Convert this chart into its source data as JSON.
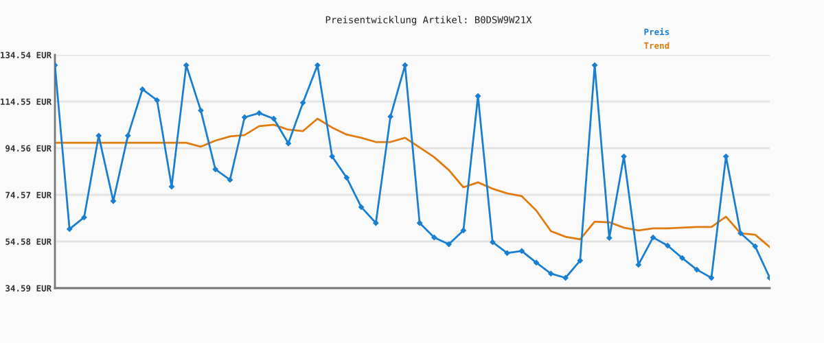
{
  "chart_data": {
    "type": "line",
    "title": "Preisentwicklung Artikel: B0DSW9W21X",
    "categories": [
      null,
      null,
      null,
      null,
      null,
      null,
      null,
      null,
      null,
      null,
      null,
      null,
      null,
      null,
      null,
      null,
      null,
      null,
      null,
      null,
      null,
      null,
      null,
      null,
      null,
      null,
      null,
      null,
      null,
      null,
      null,
      null,
      null,
      null,
      null,
      null,
      null,
      null,
      null,
      null,
      null,
      null,
      null,
      null,
      null,
      null,
      null,
      null,
      null,
      null
    ],
    "series": [
      {
        "name": "Preis",
        "color": "#1a7fd0",
        "marker": "diamond",
        "values": [
          130.1,
          59.9,
          64.9,
          99.9,
          71.9,
          99.9,
          119.8,
          115.1,
          78.1,
          130.1,
          110.7,
          85.5,
          81.0,
          107.8,
          109.6,
          107.2,
          96.6,
          114.0,
          130.1,
          91.0,
          81.9,
          69.3,
          62.5,
          108.1,
          130.1,
          62.5,
          56.3,
          53.4,
          59.3,
          116.9,
          54.3,
          49.6,
          50.5,
          45.5,
          40.8,
          39.0,
          46.4,
          130.1,
          56.1,
          91.0,
          44.6,
          56.3,
          52.8,
          47.5,
          42.5,
          39.0,
          91.0,
          58.1,
          52.5,
          39.0
        ]
      },
      {
        "name": "Trend",
        "color": "#e07b10",
        "marker": "none",
        "values": [
          96.9,
          96.9,
          96.9,
          96.9,
          96.9,
          96.9,
          96.9,
          96.9,
          96.9,
          96.9,
          95.2,
          97.8,
          99.6,
          100.2,
          104.0,
          104.6,
          102.5,
          101.9,
          107.2,
          103.4,
          100.4,
          99.0,
          97.2,
          97.2,
          99.0,
          94.9,
          90.7,
          85.2,
          77.8,
          79.9,
          77.2,
          75.2,
          74.0,
          67.8,
          59.0,
          56.6,
          55.5,
          63.1,
          62.8,
          60.5,
          59.3,
          60.2,
          60.2,
          60.5,
          60.8,
          60.8,
          65.2,
          58.1,
          57.5,
          52.2
        ]
      }
    ],
    "ylim": [
      34.59,
      134.54
    ],
    "yticks": [
      {
        "value": 34.59,
        "label": "34.59 EUR"
      },
      {
        "value": 54.58,
        "label": "54.58 EUR"
      },
      {
        "value": 74.57,
        "label": "74.57 EUR"
      },
      {
        "value": 94.56,
        "label": "94.56 EUR"
      },
      {
        "value": 114.55,
        "label": "114.55 EUR"
      },
      {
        "value": 134.54,
        "label": "134.54 EUR"
      }
    ],
    "grid": "y",
    "legend": "top right",
    "tick_labels": "y",
    "line_style": "solid"
  }
}
